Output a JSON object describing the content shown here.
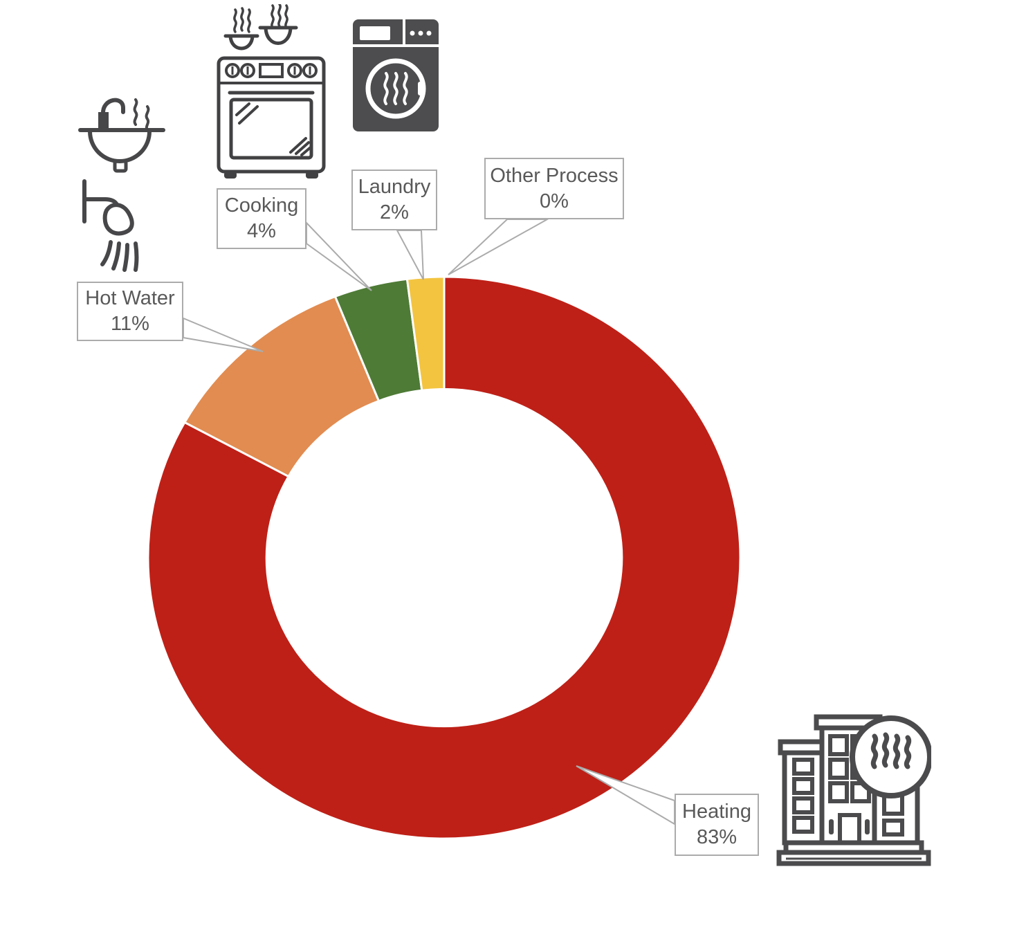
{
  "page": {
    "background_color": "#ffffff"
  },
  "chart_data": {
    "type": "pie",
    "subtype": "doughnut",
    "unit": "%",
    "direction": "clockwise",
    "start_angle_deg": 0,
    "inner_radius_ratio": 0.6,
    "legend": "none",
    "grid": "off",
    "categories": [
      "Heating",
      "Hot Water",
      "Cooking",
      "Laundry",
      "Other Process"
    ],
    "values": [
      83,
      11,
      4,
      2,
      0
    ],
    "segments": [
      {
        "label": "Heating",
        "value": 83,
        "pct_label": "83%",
        "color": "#be2017"
      },
      {
        "label": "Hot Water",
        "value": 11,
        "pct_label": "11%",
        "color": "#e28c51"
      },
      {
        "label": "Cooking",
        "value": 4,
        "pct_label": "4%",
        "color": "#4e7b36"
      },
      {
        "label": "Laundry",
        "value": 2,
        "pct_label": "2%",
        "color": "#f3c440"
      },
      {
        "label": "Other Process",
        "value": 0,
        "pct_label": "0%",
        "color": null
      }
    ]
  },
  "callout_style": {
    "border_color": "#ababab",
    "text_color": "#595959",
    "fill_color": "#ffffff"
  },
  "icons": {
    "hot_water": [
      "sink-steam-icon",
      "shower-icon"
    ],
    "cooking": "stove-icon",
    "laundry": "washing-machine-icon",
    "heating": "building-heat-icon",
    "icon_color": "#47474a"
  }
}
